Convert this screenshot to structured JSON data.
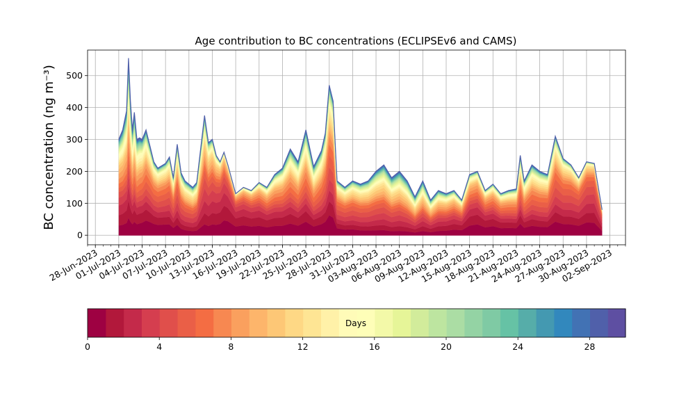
{
  "chart_data": {
    "type": "area",
    "title": "Age contribution to BC concentrations (ECLIPSEv6 and CAMS)",
    "ylabel": "BC concentration (ng m⁻³)",
    "xlabel": "",
    "ylim": [
      -30,
      580
    ],
    "xlim": [
      "2023-06-27",
      "2023-09-04"
    ],
    "grid": true,
    "y_ticks": [
      0,
      100,
      200,
      300,
      400,
      500
    ],
    "x_tick_labels": [
      "28-Jun-2023",
      "01-Jul-2023",
      "04-Jul-2023",
      "07-Jul-2023",
      "10-Jul-2023",
      "13-Jul-2023",
      "16-Jul-2023",
      "19-Jul-2023",
      "22-Jul-2023",
      "25-Jul-2023",
      "28-Jul-2023",
      "31-Jul-2023",
      "03-Aug-2023",
      "06-Aug-2023",
      "09-Aug-2023",
      "12-Aug-2023",
      "15-Aug-2023",
      "18-Aug-2023",
      "21-Aug-2023",
      "24-Aug-2023",
      "27-Aug-2023",
      "30-Aug-2023",
      "02-Sep-2023"
    ],
    "x_tick_dates": [
      "2023-06-28",
      "2023-07-01",
      "2023-07-04",
      "2023-07-07",
      "2023-07-10",
      "2023-07-13",
      "2023-07-16",
      "2023-07-19",
      "2023-07-22",
      "2023-07-25",
      "2023-07-28",
      "2023-07-31",
      "2023-08-03",
      "2023-08-06",
      "2023-08-09",
      "2023-08-12",
      "2023-08-15",
      "2023-08-18",
      "2023-08-21",
      "2023-08-24",
      "2023-08-27",
      "2023-08-30",
      "2023-09-02"
    ],
    "total": {
      "x": [
        "2023-07-01",
        "2023-07-01",
        "2023-07-02",
        "2023-07-02",
        "2023-07-02",
        "2023-07-02",
        "2023-07-03",
        "2023-07-03",
        "2023-07-03",
        "2023-07-04",
        "2023-07-04",
        "2023-07-05",
        "2023-07-05",
        "2023-07-06",
        "2023-07-07",
        "2023-07-07",
        "2023-07-08",
        "2023-07-08",
        "2023-07-09",
        "2023-07-09",
        "2023-07-10",
        "2023-07-10",
        "2023-07-11",
        "2023-07-12",
        "2023-07-12",
        "2023-07-13",
        "2023-07-13",
        "2023-07-14",
        "2023-07-14",
        "2023-07-15",
        "2023-07-16",
        "2023-07-17",
        "2023-07-18",
        "2023-07-19",
        "2023-07-20",
        "2023-07-21",
        "2023-07-22",
        "2023-07-23",
        "2023-07-24",
        "2023-07-25",
        "2023-07-26",
        "2023-07-26",
        "2023-07-27",
        "2023-07-27",
        "2023-07-28",
        "2023-07-28",
        "2023-07-29",
        "2023-07-30",
        "2023-07-31",
        "2023-08-01",
        "2023-08-02",
        "2023-08-03",
        "2023-08-04",
        "2023-08-05",
        "2023-08-06",
        "2023-08-07",
        "2023-08-08",
        "2023-08-09",
        "2023-08-10",
        "2023-08-11",
        "2023-08-12",
        "2023-08-13",
        "2023-08-14",
        "2023-08-15",
        "2023-08-16",
        "2023-08-17",
        "2023-08-18",
        "2023-08-19",
        "2023-08-20",
        "2023-08-21",
        "2023-08-21",
        "2023-08-22",
        "2023-08-23",
        "2023-08-24",
        "2023-08-25",
        "2023-08-26",
        "2023-08-27",
        "2023-08-28",
        "2023-08-29",
        "2023-08-30",
        "2023-08-31",
        "2023-09-01"
      ],
      "y": [
        300,
        330,
        390,
        555,
        420,
        330,
        385,
        300,
        305,
        300,
        330,
        280,
        230,
        210,
        225,
        245,
        180,
        285,
        195,
        170,
        160,
        150,
        165,
        375,
        290,
        300,
        250,
        230,
        260,
        220,
        130,
        150,
        140,
        165,
        150,
        190,
        210,
        270,
        230,
        330,
        215,
        240,
        265,
        320,
        470,
        420,
        170,
        150,
        170,
        160,
        170,
        200,
        220,
        180,
        200,
        170,
        120,
        170,
        110,
        140,
        130,
        140,
        110,
        190,
        200,
        140,
        160,
        130,
        140,
        145,
        250,
        170,
        220,
        200,
        190,
        310,
        240,
        220,
        180,
        230,
        225,
        80
      ]
    },
    "colorbar": {
      "label": "Days",
      "ticks": [
        0,
        4,
        8,
        12,
        16,
        20,
        24,
        28
      ],
      "range": [
        0,
        30
      ],
      "bins": 30,
      "colormap": "Spectral",
      "colors": [
        "#9e0142",
        "#b2183b",
        "#c42a4a",
        "#d53e4f",
        "#e04f4b",
        "#ea5f47",
        "#f46d43",
        "#f78851",
        "#faa05e",
        "#fdb56b",
        "#fdc776",
        "#fed885",
        "#fee594",
        "#fff1a8",
        "#fffbb8",
        "#fefeb8",
        "#f3f9a8",
        "#e6f598",
        "#d2ec9b",
        "#bde5a0",
        "#abdda4",
        "#94d3a4",
        "#7fcaa4",
        "#66c2a5",
        "#56ada9",
        "#4499b1",
        "#3288bd",
        "#4272b4",
        "#5060aa",
        "#5e4fa2"
      ]
    }
  }
}
